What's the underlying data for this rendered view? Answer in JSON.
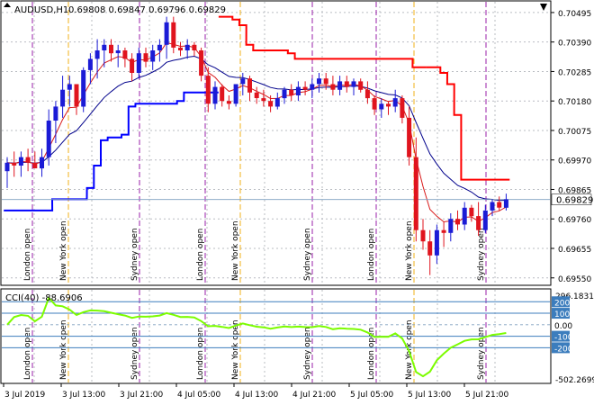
{
  "header": {
    "symbol": "AUDUSD,H1",
    "ohlc": "0.69808 0.69847 0.69796 0.69829"
  },
  "price_axis": {
    "labels": [
      "0.70495",
      "0.70390",
      "0.70285",
      "0.70180",
      "0.70075",
      "0.69970",
      "0.69865",
      "0.69760",
      "0.69655",
      "0.69550"
    ],
    "current_price": "0.69829"
  },
  "cci_panel": {
    "title": "CCI(40) -88.6906",
    "max": "296.1831",
    "min": "-502.2699",
    "levels": [
      "200",
      "100",
      "0.00",
      "-100",
      "-200"
    ]
  },
  "time_axis": {
    "labels": [
      "3 Jul 2019",
      "3 Jul 13:00",
      "3 Jul 21:00",
      "4 Jul 05:00",
      "4 Jul 13:00",
      "4 Jul 21:00",
      "5 Jul 05:00",
      "5 Jul 13:00",
      "5 Jul 21:00"
    ]
  },
  "session_labels": {
    "london": "London open",
    "newyork": "New York open",
    "sydney": "Sydney open"
  },
  "colors": {
    "bull": "#1b1bd6",
    "bear": "#e0141e",
    "ma_fast": "#d81818",
    "ma_slow": "#00008b",
    "cci": "#7cfc00",
    "level_line": "#3c7dbd",
    "stop_up": "#0000ff",
    "stop_down": "#ff0000"
  },
  "chart_data": {
    "type": "candlestick",
    "y_range": [
      0.6953,
      0.7053
    ],
    "candles": [
      {
        "o": 0.6993,
        "h": 0.6998,
        "l": 0.6987,
        "c": 0.6996
      },
      {
        "o": 0.6996,
        "h": 0.7,
        "l": 0.6991,
        "c": 0.6995
      },
      {
        "o": 0.6995,
        "h": 0.7,
        "l": 0.6991,
        "c": 0.6998
      },
      {
        "o": 0.6998,
        "h": 0.7001,
        "l": 0.6993,
        "c": 0.6996
      },
      {
        "o": 0.6996,
        "h": 0.7,
        "l": 0.6994,
        "c": 0.6994
      },
      {
        "o": 0.6994,
        "h": 0.7001,
        "l": 0.6991,
        "c": 0.6998
      },
      {
        "o": 0.6998,
        "h": 0.7015,
        "l": 0.6995,
        "c": 0.7011
      },
      {
        "o": 0.7011,
        "h": 0.7018,
        "l": 0.7003,
        "c": 0.7016
      },
      {
        "o": 0.7016,
        "h": 0.7027,
        "l": 0.7012,
        "c": 0.7022
      },
      {
        "o": 0.7022,
        "h": 0.7027,
        "l": 0.7016,
        "c": 0.7024
      },
      {
        "o": 0.7024,
        "h": 0.7024,
        "l": 0.7013,
        "c": 0.7016
      },
      {
        "o": 0.7016,
        "h": 0.703,
        "l": 0.7014,
        "c": 0.7029
      },
      {
        "o": 0.7029,
        "h": 0.7035,
        "l": 0.7024,
        "c": 0.7033
      },
      {
        "o": 0.7033,
        "h": 0.704,
        "l": 0.7026,
        "c": 0.7036
      },
      {
        "o": 0.7036,
        "h": 0.704,
        "l": 0.703,
        "c": 0.7038
      },
      {
        "o": 0.7038,
        "h": 0.704,
        "l": 0.7032,
        "c": 0.7035
      },
      {
        "o": 0.7035,
        "h": 0.7038,
        "l": 0.703,
        "c": 0.7036
      },
      {
        "o": 0.7036,
        "h": 0.7037,
        "l": 0.703,
        "c": 0.7033
      },
      {
        "o": 0.7033,
        "h": 0.7035,
        "l": 0.7025,
        "c": 0.7028
      },
      {
        "o": 0.7028,
        "h": 0.7037,
        "l": 0.7026,
        "c": 0.7035
      },
      {
        "o": 0.7035,
        "h": 0.7037,
        "l": 0.703,
        "c": 0.7032
      },
      {
        "o": 0.7032,
        "h": 0.7038,
        "l": 0.7029,
        "c": 0.7036
      },
      {
        "o": 0.7036,
        "h": 0.704,
        "l": 0.7032,
        "c": 0.7038
      },
      {
        "o": 0.7038,
        "h": 0.7048,
        "l": 0.7033,
        "c": 0.7046
      },
      {
        "o": 0.7046,
        "h": 0.7048,
        "l": 0.7035,
        "c": 0.7037
      },
      {
        "o": 0.7037,
        "h": 0.7039,
        "l": 0.7034,
        "c": 0.7036
      },
      {
        "o": 0.7036,
        "h": 0.704,
        "l": 0.7033,
        "c": 0.7038
      },
      {
        "o": 0.7038,
        "h": 0.7039,
        "l": 0.7034,
        "c": 0.7036
      },
      {
        "o": 0.7036,
        "h": 0.7037,
        "l": 0.7025,
        "c": 0.7027
      },
      {
        "o": 0.7027,
        "h": 0.703,
        "l": 0.7014,
        "c": 0.7017
      },
      {
        "o": 0.7017,
        "h": 0.7025,
        "l": 0.7015,
        "c": 0.7023
      },
      {
        "o": 0.7023,
        "h": 0.7024,
        "l": 0.7016,
        "c": 0.7018
      },
      {
        "o": 0.7018,
        "h": 0.702,
        "l": 0.7015,
        "c": 0.7017
      },
      {
        "o": 0.7017,
        "h": 0.7024,
        "l": 0.7016,
        "c": 0.7024
      },
      {
        "o": 0.7024,
        "h": 0.7028,
        "l": 0.702,
        "c": 0.7026
      },
      {
        "o": 0.7026,
        "h": 0.7027,
        "l": 0.7018,
        "c": 0.7021
      },
      {
        "o": 0.7021,
        "h": 0.7023,
        "l": 0.7017,
        "c": 0.7019
      },
      {
        "o": 0.7019,
        "h": 0.7022,
        "l": 0.7016,
        "c": 0.7018
      },
      {
        "o": 0.7018,
        "h": 0.702,
        "l": 0.7014,
        "c": 0.7016
      },
      {
        "o": 0.7016,
        "h": 0.7021,
        "l": 0.7015,
        "c": 0.7019
      },
      {
        "o": 0.7019,
        "h": 0.7023,
        "l": 0.7017,
        "c": 0.7022
      },
      {
        "o": 0.7022,
        "h": 0.7024,
        "l": 0.7018,
        "c": 0.702
      },
      {
        "o": 0.702,
        "h": 0.7025,
        "l": 0.7018,
        "c": 0.7023
      },
      {
        "o": 0.7023,
        "h": 0.7025,
        "l": 0.702,
        "c": 0.7022
      },
      {
        "o": 0.7022,
        "h": 0.7026,
        "l": 0.7019,
        "c": 0.7024
      },
      {
        "o": 0.7024,
        "h": 0.7028,
        "l": 0.7021,
        "c": 0.7026
      },
      {
        "o": 0.7026,
        "h": 0.7028,
        "l": 0.7022,
        "c": 0.7024
      },
      {
        "o": 0.7024,
        "h": 0.7027,
        "l": 0.702,
        "c": 0.7022
      },
      {
        "o": 0.7022,
        "h": 0.7027,
        "l": 0.702,
        "c": 0.7025
      },
      {
        "o": 0.7025,
        "h": 0.7027,
        "l": 0.7021,
        "c": 0.7023
      },
      {
        "o": 0.7023,
        "h": 0.7026,
        "l": 0.702,
        "c": 0.7025
      },
      {
        "o": 0.7025,
        "h": 0.7026,
        "l": 0.7021,
        "c": 0.7022
      },
      {
        "o": 0.7022,
        "h": 0.7025,
        "l": 0.7017,
        "c": 0.7019
      },
      {
        "o": 0.7019,
        "h": 0.702,
        "l": 0.7013,
        "c": 0.7015
      },
      {
        "o": 0.7015,
        "h": 0.7019,
        "l": 0.7012,
        "c": 0.7017
      },
      {
        "o": 0.7017,
        "h": 0.7018,
        "l": 0.7013,
        "c": 0.7016
      },
      {
        "o": 0.7016,
        "h": 0.7022,
        "l": 0.7014,
        "c": 0.7019
      },
      {
        "o": 0.7019,
        "h": 0.702,
        "l": 0.701,
        "c": 0.7012
      },
      {
        "o": 0.7012,
        "h": 0.7016,
        "l": 0.6995,
        "c": 0.6998
      },
      {
        "o": 0.6998,
        "h": 0.7005,
        "l": 0.6968,
        "c": 0.6972
      },
      {
        "o": 0.6972,
        "h": 0.6976,
        "l": 0.6965,
        "c": 0.6968
      },
      {
        "o": 0.6968,
        "h": 0.6972,
        "l": 0.6956,
        "c": 0.6963
      },
      {
        "o": 0.6963,
        "h": 0.6974,
        "l": 0.696,
        "c": 0.6972
      },
      {
        "o": 0.6972,
        "h": 0.6975,
        "l": 0.6966,
        "c": 0.6971
      },
      {
        "o": 0.6971,
        "h": 0.6978,
        "l": 0.6968,
        "c": 0.6976
      },
      {
        "o": 0.6976,
        "h": 0.6979,
        "l": 0.6972,
        "c": 0.6974
      },
      {
        "o": 0.6974,
        "h": 0.6982,
        "l": 0.6972,
        "c": 0.698
      },
      {
        "o": 0.698,
        "h": 0.6981,
        "l": 0.6975,
        "c": 0.6977
      },
      {
        "o": 0.6977,
        "h": 0.6982,
        "l": 0.697,
        "c": 0.6972
      },
      {
        "o": 0.6972,
        "h": 0.6981,
        "l": 0.6971,
        "c": 0.6979
      },
      {
        "o": 0.6979,
        "h": 0.6983,
        "l": 0.6977,
        "c": 0.6982
      },
      {
        "o": 0.6982,
        "h": 0.6984,
        "l": 0.6979,
        "c": 0.698
      },
      {
        "o": 0.698,
        "h": 0.6985,
        "l": 0.6979,
        "c": 0.6983
      }
    ]
  }
}
